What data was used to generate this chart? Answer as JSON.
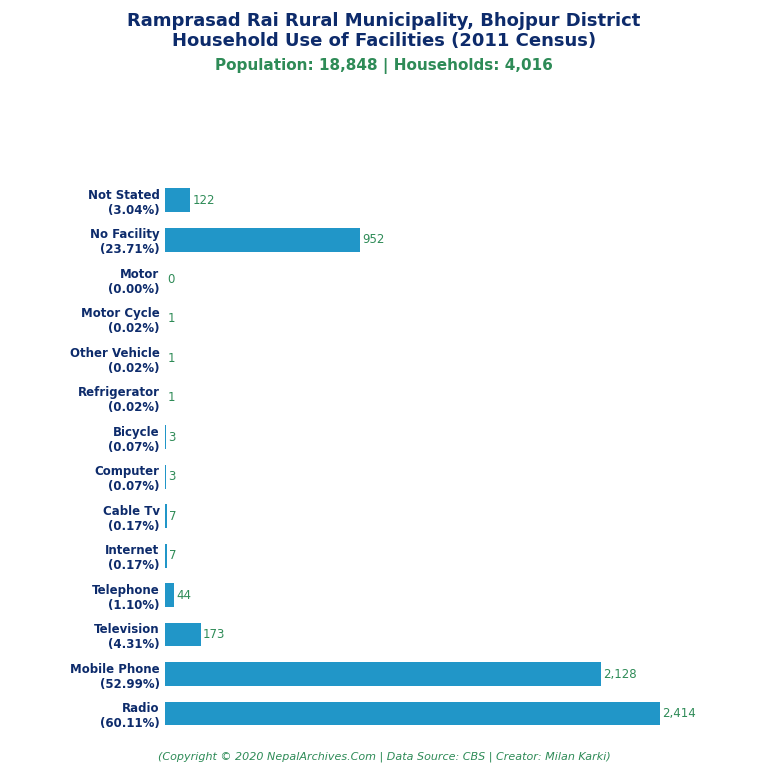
{
  "title_line1": "Ramprasad Rai Rural Municipality, Bhojpur District",
  "title_line2": "Household Use of Facilities (2011 Census)",
  "subtitle": "Population: 18,848 | Households: 4,016",
  "footer": "(Copyright © 2020 NepalArchives.Com | Data Source: CBS | Creator: Milan Karki)",
  "categories": [
    "Not Stated\n(3.04%)",
    "No Facility\n(23.71%)",
    "Motor\n(0.00%)",
    "Motor Cycle\n(0.02%)",
    "Other Vehicle\n(0.02%)",
    "Refrigerator\n(0.02%)",
    "Bicycle\n(0.07%)",
    "Computer\n(0.07%)",
    "Cable Tv\n(0.17%)",
    "Internet\n(0.17%)",
    "Telephone\n(1.10%)",
    "Television\n(4.31%)",
    "Mobile Phone\n(52.99%)",
    "Radio\n(60.11%)"
  ],
  "values": [
    122,
    952,
    0,
    1,
    1,
    1,
    3,
    3,
    7,
    7,
    44,
    173,
    2128,
    2414
  ],
  "value_labels": [
    "122",
    "952",
    "0",
    "1",
    "1",
    "1",
    "3",
    "3",
    "7",
    "7",
    "44",
    "173",
    "2,128",
    "2,414"
  ],
  "bar_color": "#2196c8",
  "value_color": "#2e8b57",
  "title_color": "#0d2b6b",
  "subtitle_color": "#2e8b57",
  "footer_color": "#2e8b57",
  "background_color": "#ffffff",
  "title_fontsize": 13,
  "subtitle_fontsize": 11,
  "label_fontsize": 8.5,
  "value_fontsize": 8.5,
  "footer_fontsize": 8,
  "bar_height": 0.6,
  "xlim": 2700
}
